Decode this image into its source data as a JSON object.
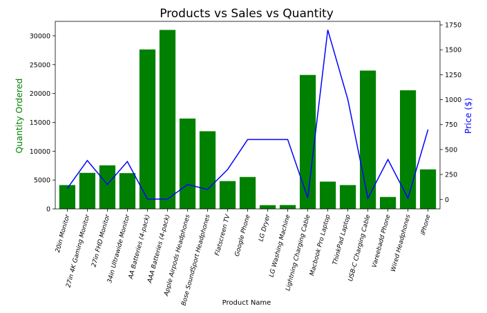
{
  "chart_data": {
    "type": "bar",
    "title": "Products vs Sales vs Quantity",
    "xlabel": "Product Name",
    "ylabel": "Quantity Ordered",
    "y2label": "Price ($)",
    "categories": [
      "20in Monitor",
      "27in 4K Gaming Monitor",
      "27in FHD Monitor",
      "34in Ultrawide Monitor",
      "AA Batteries (4-pack)",
      "AAA Batteries (4-pack)",
      "Apple Airpods Headphones",
      "Bose SoundSport Headphones",
      "Flatscreen TV",
      "Google Phone",
      "LG Dryer",
      "LG Washing Machine",
      "Lightning Charging Cable",
      "Macbook Pro Laptop",
      "ThinkPad Laptop",
      "USB-C Charging Cable",
      "Vareebadd Phone",
      "Wired Headphones",
      "iPhone"
    ],
    "series": [
      {
        "type": "bar",
        "axis": "left",
        "color": "#008000",
        "values": [
          4129,
          6244,
          7550,
          6199,
          27635,
          31017,
          15661,
          13457,
          4819,
          5532,
          646,
          666,
          23217,
          4728,
          4130,
          23975,
          2068,
          20557,
          6849
        ]
      },
      {
        "type": "line",
        "axis": "right",
        "color": "#0000ff",
        "values": [
          109.99,
          389.99,
          149.99,
          379.99,
          3.84,
          2.99,
          150.0,
          99.99,
          300.0,
          600.0,
          600.0,
          600.0,
          14.95,
          1700.0,
          999.99,
          11.95,
          400.0,
          11.99,
          700.0
        ]
      }
    ],
    "ylim": [
      0,
      32500
    ],
    "y2lim": [
      -95,
      1785
    ],
    "yticks": [
      0,
      5000,
      10000,
      15000,
      20000,
      25000,
      30000
    ],
    "y2ticks": [
      0,
      250,
      500,
      750,
      1000,
      1250,
      1500,
      1750
    ],
    "grid": false
  }
}
